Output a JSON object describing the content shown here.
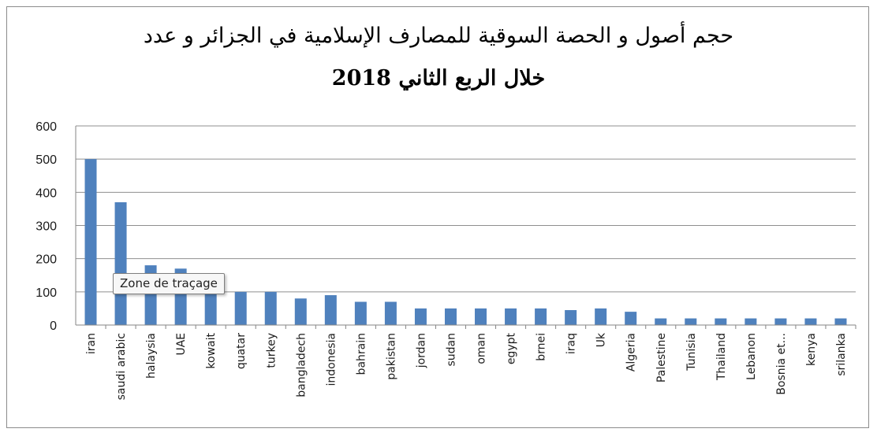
{
  "colors": {
    "bar": "#4f81bd",
    "grid": "#8f8f8f",
    "axis": "#868686"
  },
  "tooltip": {
    "text": "Zone de traçage"
  },
  "chart_data": {
    "type": "bar",
    "title": "حجم أصول و الحصة السوقية للمصارف الإسلامية في الجزائر و عدد",
    "subtitle": "خلال الربع الثاني 2018",
    "xlabel": "",
    "ylabel": "",
    "ylim": [
      0,
      600
    ],
    "yticks": [
      0,
      100,
      200,
      300,
      400,
      500,
      600
    ],
    "grid": true,
    "legend": "none",
    "categories": [
      "iran",
      "saudi arabic",
      "halaysia",
      "UAE",
      "kowait",
      "quatar",
      "turkey",
      "bangladech",
      "indonesia",
      "bahrain",
      "pakistan",
      "jordan",
      "sudan",
      "oman",
      "egypt",
      "brnei",
      "iraq",
      "Uk",
      "Algeria",
      "Palestine",
      "Tunisia",
      "Thailand",
      "Lebanon",
      "Bosnia et...",
      "kenya",
      "srilanka"
    ],
    "values": [
      500,
      370,
      180,
      170,
      100,
      100,
      100,
      80,
      90,
      70,
      70,
      50,
      50,
      50,
      50,
      50,
      45,
      50,
      40,
      20,
      20,
      20,
      20,
      20,
      20,
      20
    ]
  }
}
